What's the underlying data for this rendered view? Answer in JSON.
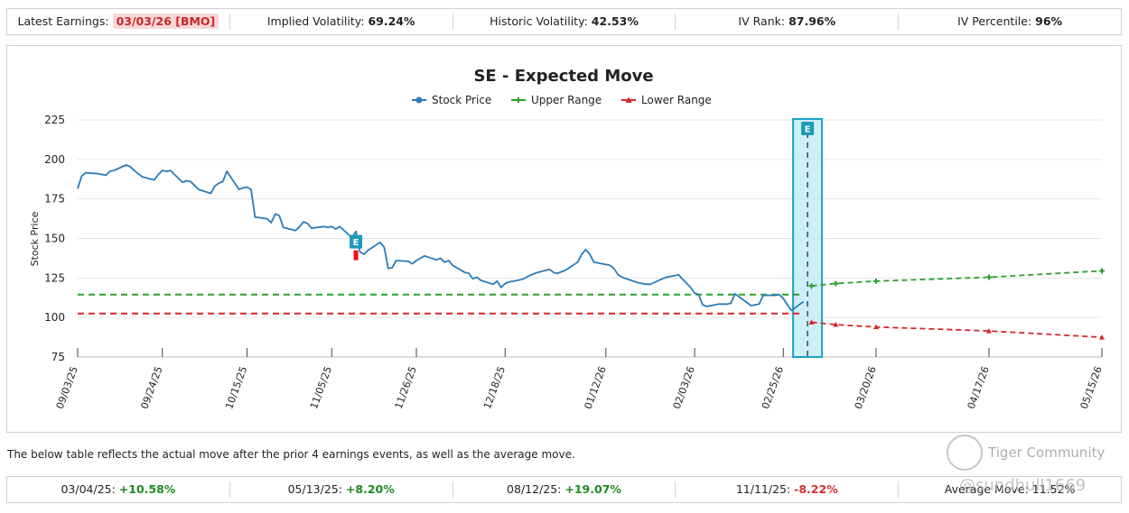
{
  "top_stats": {
    "latest_earnings_label": "Latest Earnings:",
    "latest_earnings_value": "03/03/26 [BMO]",
    "implied_vol_label": "Implied Volatility:",
    "implied_vol_value": "69.24%",
    "historic_vol_label": "Historic Volatility:",
    "historic_vol_value": "42.53%",
    "iv_rank_label": "IV Rank:",
    "iv_rank_value": "87.96%",
    "iv_pct_label": "IV Percentile:",
    "iv_pct_value": "96%"
  },
  "note": "The below table reflects the actual move after the prior 4 earnings events, as well as the average move.",
  "moves": [
    {
      "date": "03/04/25:",
      "value": "+10.58%",
      "sign": "pos"
    },
    {
      "date": "05/13/25:",
      "value": "+8.20%",
      "sign": "pos"
    },
    {
      "date": "08/12/25:",
      "value": "+19.07%",
      "sign": "pos"
    },
    {
      "date": "11/11/25:",
      "value": "-8.22%",
      "sign": "neg"
    }
  ],
  "average_move": "Average Move: 11.52%",
  "watermark": {
    "text": "Tiger Community",
    "handle": "@sundhull1669"
  },
  "chart_data": {
    "type": "line",
    "title": "SE - Expected Move",
    "ylabel": "Stock Price",
    "xlabel": "",
    "ylim": [
      75,
      225
    ],
    "yticks": [
      75,
      100,
      125,
      150,
      175,
      200,
      225
    ],
    "grid": true,
    "legend": "top-center",
    "colors": {
      "stock": "#2b7bb9",
      "upper": "#2ca02c",
      "lower": "#d62728",
      "earnings_band": "#1aa3c8"
    },
    "x_tick_labels": [
      "09/03/25",
      "09/24/25",
      "10/15/25",
      "11/05/25",
      "11/26/25",
      "12/18/25",
      "01/12/26",
      "02/03/26",
      "02/25/26",
      "03/20/26",
      "04/17/26",
      "05/15/26"
    ],
    "earnings_markers": [
      {
        "label": "E",
        "x": "11/11/25"
      },
      {
        "label": "E",
        "x": "03/03/26"
      }
    ],
    "series": [
      {
        "name": "Stock Price",
        "x": [
          "09/03/25",
          "09/04/25",
          "09/05/25",
          "09/08/25",
          "09/09/25",
          "09/10/25",
          "09/11/25",
          "09/12/25",
          "09/15/25",
          "09/16/25",
          "09/17/25",
          "09/18/25",
          "09/19/25",
          "09/22/25",
          "09/23/25",
          "09/24/25",
          "09/25/25",
          "09/26/25",
          "09/29/25",
          "09/30/25",
          "10/01/25",
          "10/02/25",
          "10/03/25",
          "10/06/25",
          "10/07/25",
          "10/08/25",
          "10/09/25",
          "10/10/25",
          "10/13/25",
          "10/14/25",
          "10/15/25",
          "10/16/25",
          "10/17/25",
          "10/20/25",
          "10/21/25",
          "10/22/25",
          "10/23/25",
          "10/24/25",
          "10/27/25",
          "10/28/25",
          "10/29/25",
          "10/30/25",
          "10/31/25",
          "11/03/25",
          "11/04/25",
          "11/05/25",
          "11/06/25",
          "11/07/25",
          "11/10/25",
          "11/11/25",
          "11/12/25",
          "11/13/25",
          "11/14/25",
          "11/17/25",
          "11/18/25",
          "11/19/25",
          "11/20/25",
          "11/21/25",
          "11/24/25",
          "11/25/25",
          "11/26/25",
          "11/28/25",
          "12/01/25",
          "12/02/25",
          "12/03/25",
          "12/04/25",
          "12/05/25",
          "12/08/25",
          "12/09/25",
          "12/10/25",
          "12/11/25",
          "12/12/25",
          "12/15/25",
          "12/16/25",
          "12/17/25",
          "12/18/25",
          "12/19/25",
          "12/22/25",
          "12/23/25",
          "12/24/25",
          "12/26/25",
          "12/29/25",
          "12/30/25",
          "12/31/25",
          "01/02/26",
          "01/05/26",
          "01/06/26",
          "01/07/26",
          "01/08/26",
          "01/09/26",
          "01/12/26",
          "01/13/26",
          "01/14/26",
          "01/15/26",
          "01/16/26",
          "01/20/26",
          "01/21/26",
          "01/22/26",
          "01/23/26",
          "01/26/26",
          "01/27/26",
          "01/28/26",
          "01/29/26",
          "01/30/26",
          "02/02/26",
          "02/03/26",
          "02/04/26",
          "02/05/26",
          "02/06/26",
          "02/09/26",
          "02/10/26",
          "02/11/26",
          "02/12/26",
          "02/13/26",
          "02/17/26",
          "02/18/26",
          "02/19/26",
          "02/20/26",
          "02/23/26",
          "02/24/26",
          "02/25/26",
          "02/26/26",
          "02/27/26",
          "03/02/26"
        ],
        "values": [
          181.5,
          189.5,
          191.5,
          191.0,
          190.5,
          190.0,
          192.5,
          193.0,
          196.5,
          195.5,
          193.0,
          191.0,
          189.0,
          187.0,
          190.5,
          193.0,
          192.5,
          193.0,
          185.5,
          186.5,
          186.0,
          183.5,
          181.0,
          178.5,
          183.0,
          185.0,
          186.0,
          192.5,
          181.0,
          182.0,
          182.5,
          181.0,
          163.5,
          162.5,
          160.0,
          165.5,
          164.5,
          157.0,
          155.0,
          157.5,
          160.5,
          159.5,
          156.5,
          157.5,
          157.0,
          157.5,
          156.0,
          157.5,
          150.5,
          154.5,
          141.5,
          140.0,
          142.5,
          147.5,
          144.5,
          131.0,
          131.5,
          136.0,
          135.5,
          134.0,
          136.0,
          139.0,
          136.5,
          137.5,
          135.0,
          136.0,
          133.0,
          128.5,
          128.0,
          124.5,
          125.5,
          123.5,
          121.0,
          123.0,
          119.0,
          121.5,
          122.5,
          124.0,
          125.0,
          126.5,
          128.5,
          130.5,
          128.5,
          128.0,
          130.0,
          135.0,
          140.0,
          143.0,
          140.0,
          135.0,
          133.5,
          133.0,
          131.0,
          127.0,
          125.5,
          122.0,
          121.5,
          121.0,
          121.0,
          124.5,
          125.5,
          126.0,
          126.5,
          127.0,
          119.0,
          115.5,
          114.5,
          108.0,
          107.0,
          108.5,
          108.5,
          108.5,
          109.0,
          115.0,
          107.5,
          108.0,
          108.5,
          114.0,
          114.0,
          114.5,
          112.0,
          108.0,
          104.5,
          110.0
        ]
      },
      {
        "name": "Upper Range",
        "x": [
          "03/04/26",
          "03/10/26",
          "03/20/26",
          "04/17/26",
          "05/15/26"
        ],
        "values": [
          120.0,
          121.5,
          123.0,
          125.5,
          129.5
        ],
        "reference_level": 114.5
      },
      {
        "name": "Lower Range",
        "x": [
          "03/04/26",
          "03/10/26",
          "03/20/26",
          "04/17/26",
          "05/15/26"
        ],
        "values": [
          97.0,
          95.5,
          94.0,
          91.5,
          87.5
        ],
        "reference_level": 102.5
      }
    ]
  }
}
